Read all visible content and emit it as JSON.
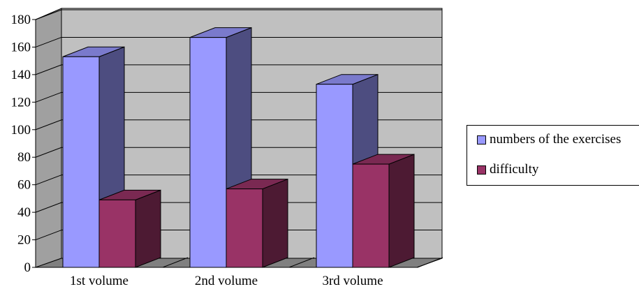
{
  "chart_data": {
    "type": "bar",
    "style": "3d-clustered-column",
    "categories": [
      "1st volume",
      "2nd volume",
      "3rd volume"
    ],
    "series": [
      {
        "name": "numbers of the exercises",
        "values": [
          153,
          167,
          133
        ],
        "color": "#9999ff"
      },
      {
        "name": "difficulty",
        "values": [
          49,
          57,
          75
        ],
        "color": "#993366"
      }
    ],
    "ylim": [
      0,
      180
    ],
    "yticks": [
      "0",
      "20",
      "40",
      "60",
      "80",
      "100",
      "120",
      "140",
      "160",
      "180"
    ],
    "grid": true,
    "legend_position": "right",
    "wall_color": "#c0c0c0"
  }
}
